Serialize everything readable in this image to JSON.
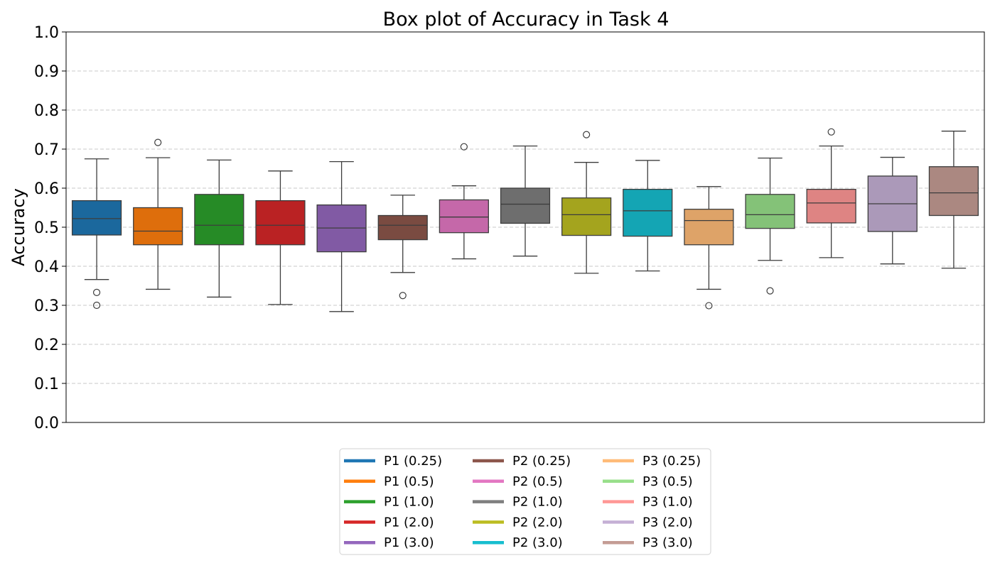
{
  "chart_data": {
    "type": "box",
    "title": "Box plot of Accuracy in Task 4",
    "ylabel": "Accuracy",
    "xlabel": "",
    "ylim": [
      0.0,
      1.0
    ],
    "yticks": [
      "0.0",
      "0.1",
      "0.2",
      "0.3",
      "0.4",
      "0.5",
      "0.6",
      "0.7",
      "0.8",
      "0.9",
      "1.0"
    ],
    "grid": "y-dashed",
    "legend_placement": "bottom-center",
    "series": [
      {
        "name": "P1 (0.25)",
        "color": "#1f77b4",
        "min": 0.366,
        "q1": 0.48,
        "median": 0.522,
        "q3": 0.568,
        "max": 0.675,
        "outliers": [
          0.333,
          0.3
        ]
      },
      {
        "name": "P1 (0.5)",
        "color": "#ff7f0e",
        "min": 0.341,
        "q1": 0.455,
        "median": 0.49,
        "q3": 0.55,
        "max": 0.678,
        "outliers": [
          0.717
        ]
      },
      {
        "name": "P1 (1.0)",
        "color": "#2ca02c",
        "min": 0.321,
        "q1": 0.455,
        "median": 0.505,
        "q3": 0.584,
        "max": 0.672,
        "outliers": []
      },
      {
        "name": "P1 (2.0)",
        "color": "#d62728",
        "min": 0.302,
        "q1": 0.455,
        "median": 0.505,
        "q3": 0.568,
        "max": 0.644,
        "outliers": []
      },
      {
        "name": "P1 (3.0)",
        "color": "#9467bd",
        "min": 0.284,
        "q1": 0.437,
        "median": 0.498,
        "q3": 0.557,
        "max": 0.668,
        "outliers": []
      },
      {
        "name": "P2 (0.25)",
        "color": "#8c564b",
        "min": 0.384,
        "q1": 0.468,
        "median": 0.505,
        "q3": 0.53,
        "max": 0.582,
        "outliers": [
          0.325
        ]
      },
      {
        "name": "P2 (0.5)",
        "color": "#e377c2",
        "min": 0.419,
        "q1": 0.486,
        "median": 0.526,
        "q3": 0.57,
        "max": 0.606,
        "outliers": [
          0.706
        ]
      },
      {
        "name": "P2 (1.0)",
        "color": "#7f7f7f",
        "min": 0.426,
        "q1": 0.51,
        "median": 0.559,
        "q3": 0.6,
        "max": 0.708,
        "outliers": []
      },
      {
        "name": "P2 (2.0)",
        "color": "#bcbd22",
        "min": 0.382,
        "q1": 0.479,
        "median": 0.532,
        "q3": 0.575,
        "max": 0.666,
        "outliers": [
          0.737
        ]
      },
      {
        "name": "P2 (3.0)",
        "color": "#17becf",
        "min": 0.388,
        "q1": 0.477,
        "median": 0.542,
        "q3": 0.597,
        "max": 0.671,
        "outliers": []
      },
      {
        "name": "P3 (0.25)",
        "color": "#ffbb78",
        "min": 0.341,
        "q1": 0.455,
        "median": 0.517,
        "q3": 0.546,
        "max": 0.604,
        "outliers": [
          0.299
        ]
      },
      {
        "name": "P3 (0.5)",
        "color": "#98df8a",
        "min": 0.415,
        "q1": 0.497,
        "median": 0.532,
        "q3": 0.584,
        "max": 0.677,
        "outliers": [
          0.337
        ]
      },
      {
        "name": "P3 (1.0)",
        "color": "#ff9896",
        "min": 0.422,
        "q1": 0.511,
        "median": 0.562,
        "q3": 0.597,
        "max": 0.708,
        "outliers": [
          0.744
        ]
      },
      {
        "name": "P3 (2.0)",
        "color": "#c5b0d5",
        "min": 0.406,
        "q1": 0.489,
        "median": 0.56,
        "q3": 0.631,
        "max": 0.679,
        "outliers": []
      },
      {
        "name": "P3 (3.0)",
        "color": "#c49c94",
        "min": 0.395,
        "q1": 0.53,
        "median": 0.588,
        "q3": 0.655,
        "max": 0.746,
        "outliers": []
      }
    ]
  }
}
